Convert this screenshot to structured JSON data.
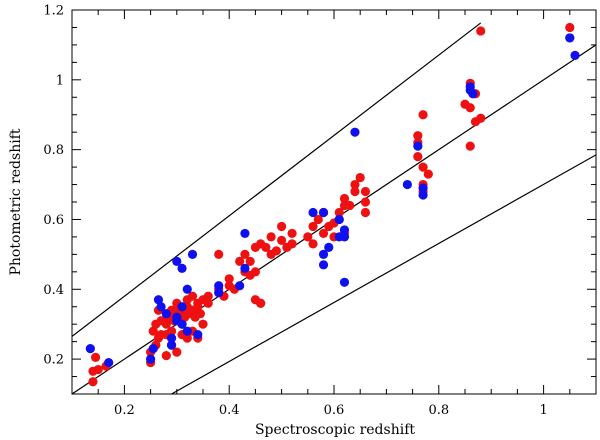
{
  "chart_data": {
    "type": "scatter",
    "title": "",
    "xlabel": "Spectroscopic redshift",
    "ylabel": "Photometric redshift",
    "xlim": [
      0.1,
      1.1
    ],
    "ylim": [
      0.1,
      1.2
    ],
    "xticks": [
      0.2,
      0.4,
      0.6,
      0.8,
      1.0
    ],
    "xtick_labels": [
      "0.2",
      "0.4",
      "0.6",
      "0.8",
      "1"
    ],
    "yticks": [
      0.2,
      0.4,
      0.6,
      0.8,
      1.0,
      1.2
    ],
    "ytick_labels": [
      "0.2",
      "0.4",
      "0.6",
      "0.8",
      "1",
      "1.2"
    ],
    "lines": [
      {
        "name": "upper-bound-line",
        "x": [
          0.1,
          0.88
        ],
        "y": [
          0.265,
          1.163
        ]
      },
      {
        "name": "one-to-one-line",
        "x": [
          0.1,
          1.1
        ],
        "y": [
          0.1,
          1.1
        ]
      },
      {
        "name": "lower-bound-line",
        "x": [
          0.29,
          1.1
        ],
        "y": [
          0.1,
          0.785
        ]
      }
    ],
    "series": [
      {
        "name": "red",
        "color": "#ee1111",
        "x": [
          0.14,
          0.14,
          0.145,
          0.15,
          0.165,
          0.25,
          0.25,
          0.255,
          0.26,
          0.26,
          0.265,
          0.265,
          0.27,
          0.27,
          0.28,
          0.28,
          0.28,
          0.285,
          0.29,
          0.29,
          0.295,
          0.3,
          0.3,
          0.305,
          0.31,
          0.31,
          0.315,
          0.32,
          0.32,
          0.325,
          0.33,
          0.33,
          0.335,
          0.34,
          0.34,
          0.345,
          0.35,
          0.35,
          0.36,
          0.36,
          0.34,
          0.3,
          0.32,
          0.29,
          0.28,
          0.31,
          0.33,
          0.38,
          0.38,
          0.39,
          0.4,
          0.4,
          0.41,
          0.42,
          0.43,
          0.43,
          0.44,
          0.44,
          0.45,
          0.45,
          0.46,
          0.46,
          0.47,
          0.48,
          0.48,
          0.49,
          0.5,
          0.5,
          0.51,
          0.52,
          0.52,
          0.45,
          0.46,
          0.55,
          0.56,
          0.56,
          0.57,
          0.58,
          0.58,
          0.59,
          0.6,
          0.6,
          0.61,
          0.62,
          0.62,
          0.63,
          0.64,
          0.64,
          0.65,
          0.66,
          0.66,
          0.66,
          0.62,
          0.61,
          0.76,
          0.76,
          0.77,
          0.77,
          0.77,
          0.78,
          0.76,
          0.77,
          0.85,
          0.86,
          0.86,
          0.87,
          0.87,
          0.88,
          0.86,
          0.88,
          1.05,
          1.05
        ],
        "y": [
          0.135,
          0.165,
          0.205,
          0.17,
          0.18,
          0.19,
          0.22,
          0.28,
          0.24,
          0.3,
          0.26,
          0.34,
          0.27,
          0.31,
          0.27,
          0.3,
          0.33,
          0.32,
          0.28,
          0.34,
          0.31,
          0.36,
          0.33,
          0.35,
          0.3,
          0.34,
          0.32,
          0.37,
          0.35,
          0.33,
          0.34,
          0.38,
          0.32,
          0.36,
          0.35,
          0.33,
          0.3,
          0.37,
          0.36,
          0.38,
          0.26,
          0.22,
          0.26,
          0.24,
          0.21,
          0.27,
          0.28,
          0.5,
          0.4,
          0.38,
          0.43,
          0.41,
          0.4,
          0.48,
          0.5,
          0.45,
          0.44,
          0.48,
          0.52,
          0.45,
          0.53,
          0.36,
          0.52,
          0.5,
          0.55,
          0.51,
          0.58,
          0.54,
          0.52,
          0.56,
          0.53,
          0.37,
          0.36,
          0.55,
          0.58,
          0.53,
          0.6,
          0.62,
          0.56,
          0.58,
          0.55,
          0.59,
          0.62,
          0.64,
          0.66,
          0.64,
          0.7,
          0.68,
          0.72,
          0.65,
          0.68,
          0.62,
          0.56,
          0.6,
          0.82,
          0.78,
          0.75,
          0.7,
          0.68,
          0.73,
          0.84,
          0.9,
          0.93,
          0.92,
          0.99,
          0.88,
          0.96,
          0.89,
          0.81,
          1.14,
          1.12,
          1.15
        ]
      },
      {
        "name": "blue",
        "color": "#1010ee",
        "x": [
          0.135,
          0.17,
          0.25,
          0.255,
          0.265,
          0.27,
          0.28,
          0.29,
          0.3,
          0.3,
          0.31,
          0.31,
          0.32,
          0.32,
          0.33,
          0.3,
          0.29,
          0.31,
          0.34,
          0.38,
          0.38,
          0.42,
          0.43,
          0.43,
          0.56,
          0.58,
          0.58,
          0.58,
          0.59,
          0.61,
          0.61,
          0.62,
          0.62,
          0.62,
          0.64,
          0.74,
          0.76,
          0.77,
          0.77,
          0.86,
          0.86,
          0.865,
          1.05,
          1.06
        ],
        "y": [
          0.23,
          0.19,
          0.2,
          0.23,
          0.37,
          0.35,
          0.33,
          0.26,
          0.31,
          0.48,
          0.3,
          0.46,
          0.28,
          0.4,
          0.5,
          0.32,
          0.24,
          0.35,
          0.27,
          0.39,
          0.41,
          0.41,
          0.56,
          0.46,
          0.62,
          0.47,
          0.5,
          0.62,
          0.52,
          0.6,
          0.55,
          0.57,
          0.55,
          0.42,
          0.85,
          0.7,
          0.81,
          0.67,
          0.69,
          0.97,
          0.98,
          0.96,
          1.12,
          1.07
        ]
      }
    ]
  }
}
